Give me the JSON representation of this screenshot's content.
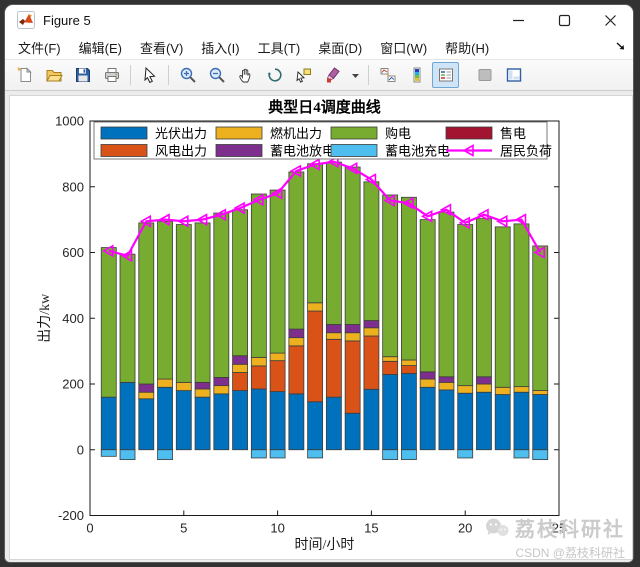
{
  "window": {
    "title": "Figure 5",
    "controls": [
      "minimize",
      "maximize",
      "close"
    ]
  },
  "menu": {
    "items": [
      "文件(F)",
      "编辑(E)",
      "查看(V)",
      "插入(I)",
      "工具(T)",
      "桌面(D)",
      "窗口(W)",
      "帮助(H)"
    ]
  },
  "toolbar": {
    "buttons": [
      "new-figure",
      "open-file",
      "save-figure",
      "print-figure",
      "edit-plot",
      "zoom-in",
      "zoom-out",
      "pan",
      "rotate-3d",
      "data-cursor",
      "brush-data",
      "brush-dropdown",
      "link-plots",
      "insert-colorbar",
      "insert-legend",
      "hide-plot-tools",
      "show-plot-tools"
    ],
    "active_button": "insert-legend"
  },
  "chart_data": {
    "type": "bar",
    "subtype": "stacked-bars-with-line",
    "title": "典型日4调度曲线",
    "xlabel": "时间/小时",
    "ylabel": "出力/kw",
    "xlim": [
      0,
      25
    ],
    "ylim": [
      -200,
      1000
    ],
    "xticks": [
      0,
      5,
      10,
      15,
      20,
      25
    ],
    "yticks": [
      -200,
      0,
      200,
      400,
      600,
      800,
      1000
    ],
    "grid": false,
    "legend_position": "top",
    "hours": [
      1,
      2,
      3,
      4,
      5,
      6,
      7,
      8,
      9,
      10,
      11,
      12,
      13,
      14,
      15,
      16,
      17,
      18,
      19,
      20,
      21,
      22,
      23,
      24
    ],
    "bar_width_units": 0.8,
    "series": [
      {
        "name": "光伏出力",
        "color": "#0072BD",
        "values": [
          160,
          205,
          155,
          190,
          180,
          160,
          170,
          180,
          185,
          177,
          170,
          146,
          160,
          111,
          184,
          229,
          232,
          190,
          182,
          172,
          175,
          168,
          175,
          168
        ]
      },
      {
        "name": "风电出力",
        "color": "#D95319",
        "values": [
          0,
          0,
          0,
          0,
          0,
          0,
          0,
          55,
          70,
          94,
          146,
          276,
          176,
          220,
          162,
          40,
          24,
          0,
          0,
          0,
          0,
          0,
          0,
          0
        ]
      },
      {
        "name": "燃机出力",
        "color": "#EDB120",
        "values": [
          0,
          0,
          20,
          25,
          25,
          25,
          25,
          25,
          26,
          23,
          25,
          25,
          20,
          25,
          25,
          14,
          17,
          25,
          23,
          23,
          25,
          22,
          17,
          12
        ]
      },
      {
        "name": "蓄电池放电",
        "color": "#7E2F8E",
        "values": [
          0,
          0,
          25,
          0,
          0,
          20,
          25,
          26,
          0,
          0,
          26,
          0,
          25,
          25,
          22,
          0,
          0,
          22,
          17,
          0,
          22,
          0,
          0,
          0
        ]
      },
      {
        "name": "购电",
        "color": "#77AC30",
        "values": [
          455,
          390,
          490,
          480,
          480,
          485,
          500,
          444,
          497,
          496,
          478,
          423,
          494,
          479,
          422,
          492,
          495,
          463,
          501,
          490,
          481,
          488,
          495,
          440
        ]
      },
      {
        "name": "售电",
        "color": "#A2142F",
        "values": [
          0,
          0,
          0,
          0,
          0,
          0,
          0,
          0,
          0,
          0,
          0,
          0,
          0,
          0,
          0,
          0,
          0,
          0,
          0,
          0,
          0,
          0,
          0,
          0
        ]
      },
      {
        "name": "蓄电池充电",
        "color": "#4DBEEE",
        "values": [
          -20,
          -30,
          0,
          -30,
          0,
          0,
          0,
          0,
          -25,
          -25,
          0,
          -25,
          0,
          0,
          0,
          -30,
          -30,
          0,
          0,
          -25,
          0,
          0,
          -25,
          -30
        ]
      }
    ],
    "line_series": {
      "name": "居民负荷",
      "color": "#FF00FF",
      "marker": "left-triangle",
      "values": [
        605,
        590,
        695,
        700,
        695,
        700,
        715,
        735,
        760,
        780,
        848,
        868,
        876,
        856,
        822,
        758,
        750,
        710,
        730,
        690,
        715,
        695,
        700,
        600
      ]
    },
    "legend": {
      "rows": 2,
      "cols": 4,
      "order": [
        "光伏出力",
        "燃机出力",
        "购电",
        "售电",
        "风电出力",
        "蓄电池放电",
        "蓄电池充电",
        "居民负荷"
      ]
    }
  },
  "watermark": {
    "line1": "荔枝科研社",
    "line2": "CSDN @荔枝科研社"
  }
}
